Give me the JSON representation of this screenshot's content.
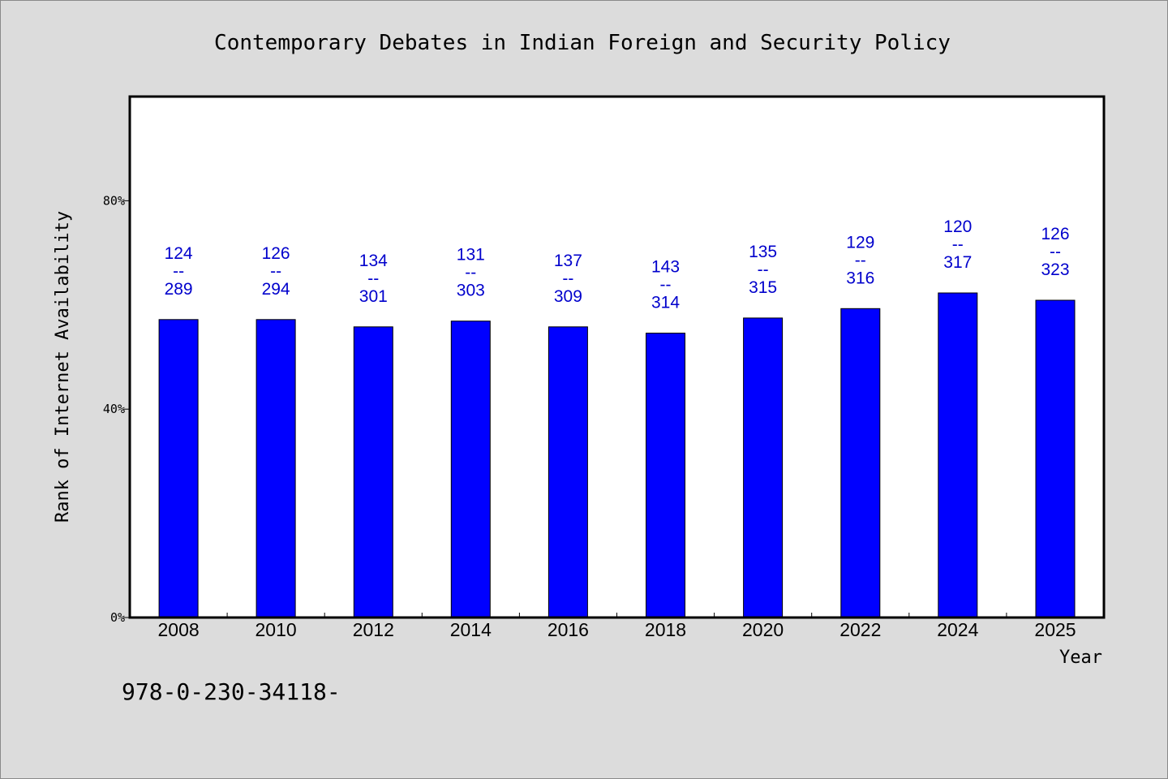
{
  "chart_data": {
    "type": "bar",
    "title": "Contemporary Debates in Indian Foreign and Security Policy",
    "xlabel": "Year",
    "ylabel": "Rank of Internet Availability",
    "ylim": [
      0,
      100
    ],
    "yticks": [
      {
        "value": 0,
        "label": "0%"
      },
      {
        "value": 40,
        "label": "40%"
      },
      {
        "value": 80,
        "label": "80%"
      }
    ],
    "grid": false,
    "legend": "none",
    "categories": [
      "2008",
      "2010",
      "2012",
      "2014",
      "2016",
      "2018",
      "2020",
      "2022",
      "2024",
      "2025"
    ],
    "values": [
      57.2,
      57.2,
      55.8,
      56.9,
      55.8,
      54.6,
      57.5,
      59.3,
      62.3,
      60.9
    ],
    "labels": [
      {
        "top": "124",
        "sep": "--",
        "bottom": "289"
      },
      {
        "top": "126",
        "sep": "--",
        "bottom": "294"
      },
      {
        "top": "134",
        "sep": "--",
        "bottom": "301"
      },
      {
        "top": "131",
        "sep": "--",
        "bottom": "303"
      },
      {
        "top": "137",
        "sep": "--",
        "bottom": "309"
      },
      {
        "top": "143",
        "sep": "--",
        "bottom": "314"
      },
      {
        "top": "135",
        "sep": "--",
        "bottom": "315"
      },
      {
        "top": "129",
        "sep": "--",
        "bottom": "316"
      },
      {
        "top": "120",
        "sep": "--",
        "bottom": "317"
      },
      {
        "top": "126",
        "sep": "--",
        "bottom": "323"
      }
    ],
    "bar_color": "#0000ff",
    "label_color": "#0000cc"
  },
  "footer": {
    "isbn": "978-0-230-34118-"
  }
}
